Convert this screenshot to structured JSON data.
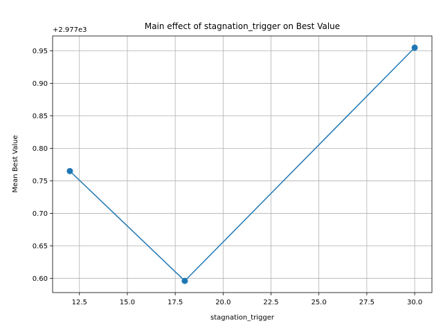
{
  "chart_data": {
    "type": "line",
    "title": "Main effect of stagnation_trigger on Best Value",
    "xlabel": "stagnation_trigger",
    "ylabel": "Mean Best Value",
    "y_offset_label": "+2.977e3",
    "x": [
      12,
      18,
      30
    ],
    "y": [
      0.765,
      0.596,
      0.955
    ],
    "xlim": [
      11.1,
      30.9
    ],
    "ylim": [
      0.578,
      0.973
    ],
    "x_ticks": [
      12.5,
      15.0,
      17.5,
      20.0,
      22.5,
      25.0,
      27.5,
      30.0
    ],
    "x_tick_labels": [
      "12.5",
      "15.0",
      "17.5",
      "20.0",
      "22.5",
      "25.0",
      "27.5",
      "30.0"
    ],
    "y_ticks": [
      0.6,
      0.65,
      0.7,
      0.75,
      0.8,
      0.85,
      0.9,
      0.95
    ],
    "y_tick_labels": [
      "0.60",
      "0.65",
      "0.70",
      "0.75",
      "0.80",
      "0.85",
      "0.90",
      "0.95"
    ],
    "grid": true,
    "line_color": "#1f77b4",
    "marker": "circle"
  }
}
